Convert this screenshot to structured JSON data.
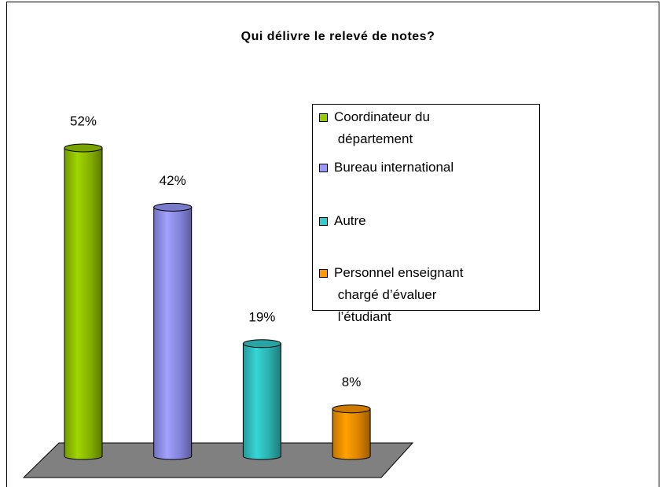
{
  "chart_data": {
    "type": "bar3d",
    "title": "Qui délivre le relevé de notes?",
    "categories": [
      "Coordinateur du département",
      "Bureau international",
      "Autre",
      "Personnel enseignant chargé d’évaluer l’étudiant"
    ],
    "values": [
      52,
      42,
      19,
      8
    ],
    "value_labels": [
      "52%",
      "42%",
      "19%",
      "8%"
    ],
    "colors": [
      "#99cc00",
      "#9999ff",
      "#33cccc",
      "#ff9900"
    ],
    "legend": "right"
  }
}
